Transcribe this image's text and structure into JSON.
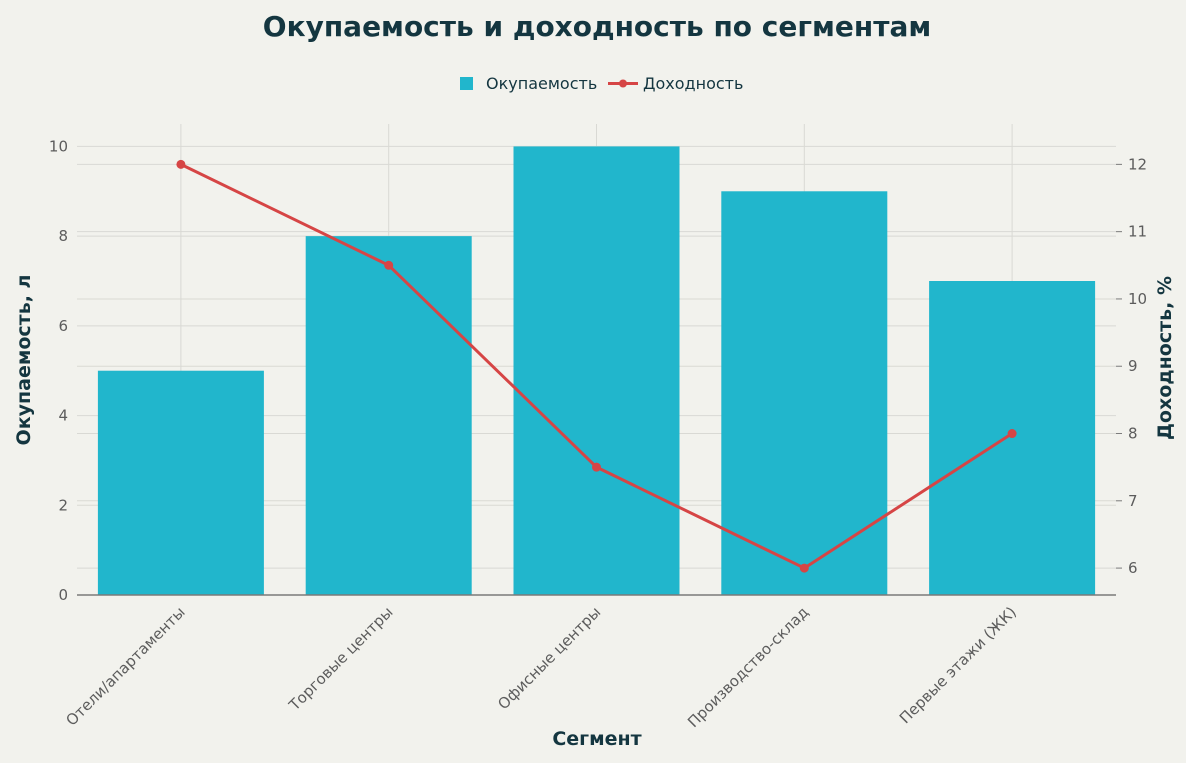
{
  "chart_data": {
    "type": "bar",
    "title": "Окупаемость и доходность по сегментам",
    "xlabel": "Сегмент",
    "ylabel": "Окупаемость, л",
    "y2label": "Доходность, %",
    "categories": [
      "Отели/апартаменты",
      "Торговые центры",
      "Офисные центры",
      "Производство-склад",
      "Первые этажи (ЖК)"
    ],
    "series": [
      {
        "name": "Окупаемость",
        "type": "bar",
        "axis": "left",
        "color": "#21b6cc",
        "values": [
          5,
          8,
          10,
          9,
          7
        ]
      },
      {
        "name": "Доходность",
        "type": "line",
        "axis": "right",
        "color": "#d64545",
        "values": [
          12,
          10.5,
          7.5,
          6,
          8
        ]
      }
    ],
    "ylim": [
      0,
      10.5
    ],
    "y2lim": [
      5.6,
      12.6
    ],
    "yticks": [
      0,
      2,
      4,
      6,
      8,
      10
    ],
    "y2ticks": [
      6,
      7,
      8,
      9,
      10,
      11,
      12
    ],
    "grid": true,
    "legend": "top-center"
  }
}
